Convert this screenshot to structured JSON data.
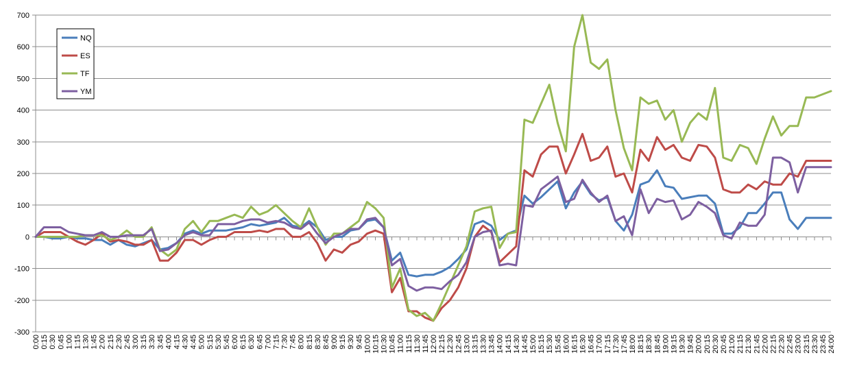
{
  "chart_data": {
    "type": "line",
    "title": "",
    "xlabel": "",
    "ylabel": "",
    "ylim": [
      -300,
      700
    ],
    "y_ticks": [
      -300,
      -200,
      -100,
      0,
      100,
      200,
      300,
      400,
      500,
      600,
      700
    ],
    "grid": "horizontal",
    "legend_position": "top-left",
    "x": [
      "0:00",
      "0:15",
      "0:30",
      "0:45",
      "1:00",
      "1:15",
      "1:30",
      "1:45",
      "2:00",
      "2:15",
      "2:30",
      "2:45",
      "3:00",
      "3:15",
      "3:30",
      "3:45",
      "4:00",
      "4:15",
      "4:30",
      "4:45",
      "5:00",
      "5:15",
      "5:30",
      "5:45",
      "6:00",
      "6:15",
      "6:30",
      "6:45",
      "7:00",
      "7:15",
      "7:30",
      "7:45",
      "8:00",
      "8:15",
      "8:30",
      "8:45",
      "9:00",
      "9:15",
      "9:30",
      "9:45",
      "10:00",
      "10:15",
      "10:30",
      "10:45",
      "11:00",
      "11:15",
      "11:30",
      "11:45",
      "12:00",
      "12:15",
      "12:30",
      "12:45",
      "13:00",
      "13:15",
      "13:30",
      "13:45",
      "14:00",
      "14:15",
      "14:30",
      "14:45",
      "15:00",
      "15:15",
      "15:30",
      "15:45",
      "16:00",
      "16:15",
      "16:30",
      "16:45",
      "17:00",
      "17:15",
      "17:30",
      "17:45",
      "18:00",
      "18:15",
      "18:30",
      "18:45",
      "19:00",
      "19:15",
      "19:30",
      "19:45",
      "20:00",
      "20:15",
      "20:30",
      "20:45",
      "21:00",
      "21:15",
      "21:30",
      "21:45",
      "22:00",
      "22:15",
      "22:30",
      "22:45",
      "23:00",
      "23:15",
      "23:30",
      "23:45",
      "24:00"
    ],
    "series": [
      {
        "name": "NQ",
        "color": "#4a7ebb",
        "values": [
          0,
          0,
          -5,
          -5,
          0,
          -5,
          -5,
          -10,
          -10,
          -25,
          -10,
          -25,
          -30,
          -20,
          -10,
          -40,
          -35,
          -20,
          10,
          20,
          10,
          20,
          20,
          20,
          25,
          30,
          40,
          35,
          40,
          45,
          60,
          35,
          30,
          50,
          30,
          -10,
          0,
          0,
          20,
          25,
          50,
          55,
          30,
          -75,
          -50,
          -120,
          -125,
          -120,
          -120,
          -110,
          -95,
          -70,
          -40,
          40,
          50,
          35,
          -10,
          10,
          20,
          130,
          105,
          125,
          150,
          175,
          90,
          140,
          175,
          135,
          115,
          125,
          50,
          20,
          70,
          165,
          175,
          210,
          160,
          155,
          120,
          125,
          130,
          130,
          105,
          10,
          10,
          30,
          75,
          75,
          105,
          140,
          140,
          55,
          25,
          60,
          60,
          60,
          60
        ]
      },
      {
        "name": "ES",
        "color": "#be4b48",
        "values": [
          0,
          15,
          15,
          15,
          0,
          -15,
          -25,
          -10,
          10,
          -15,
          -10,
          -15,
          -25,
          -25,
          -10,
          -75,
          -75,
          -50,
          -10,
          -10,
          -25,
          -10,
          0,
          0,
          15,
          15,
          15,
          20,
          15,
          25,
          25,
          0,
          0,
          15,
          -20,
          -75,
          -40,
          -50,
          -25,
          -15,
          10,
          20,
          10,
          -175,
          -130,
          -235,
          -235,
          -255,
          -265,
          -225,
          -200,
          -160,
          -100,
          0,
          35,
          15,
          -80,
          -55,
          -30,
          210,
          190,
          260,
          285,
          285,
          200,
          260,
          325,
          240,
          250,
          285,
          190,
          200,
          140,
          275,
          240,
          315,
          275,
          290,
          250,
          240,
          290,
          285,
          250,
          150,
          140,
          140,
          165,
          150,
          175,
          165,
          165,
          200,
          190,
          240,
          240,
          240,
          240
        ]
      },
      {
        "name": "TF",
        "color": "#98b954",
        "values": [
          0,
          0,
          0,
          0,
          0,
          0,
          5,
          5,
          5,
          -10,
          0,
          20,
          0,
          0,
          30,
          -40,
          -60,
          -40,
          25,
          50,
          15,
          50,
          50,
          60,
          70,
          60,
          95,
          70,
          80,
          100,
          75,
          50,
          30,
          90,
          30,
          -25,
          10,
          10,
          30,
          50,
          110,
          90,
          60,
          -160,
          -100,
          -230,
          -250,
          -240,
          -265,
          -210,
          -150,
          -90,
          -30,
          80,
          90,
          95,
          -35,
          10,
          15,
          370,
          360,
          420,
          480,
          360,
          270,
          600,
          700,
          550,
          530,
          560,
          400,
          280,
          210,
          440,
          420,
          430,
          370,
          400,
          300,
          360,
          390,
          370,
          470,
          250,
          240,
          290,
          280,
          230,
          310,
          380,
          320,
          350,
          350,
          440,
          440,
          450,
          460
        ]
      },
      {
        "name": "YM",
        "color": "#7d5fa0",
        "values": [
          0,
          30,
          30,
          30,
          15,
          10,
          5,
          5,
          15,
          0,
          0,
          5,
          5,
          5,
          25,
          -45,
          -40,
          -20,
          5,
          15,
          5,
          5,
          40,
          40,
          40,
          50,
          55,
          55,
          45,
          50,
          45,
          30,
          25,
          45,
          10,
          -20,
          0,
          10,
          25,
          25,
          55,
          60,
          30,
          -90,
          -70,
          -155,
          -170,
          -160,
          -160,
          -165,
          -140,
          -120,
          -80,
          0,
          15,
          20,
          -90,
          -85,
          -90,
          100,
          95,
          150,
          170,
          190,
          110,
          120,
          180,
          140,
          110,
          130,
          50,
          65,
          5,
          150,
          75,
          120,
          110,
          115,
          55,
          70,
          110,
          95,
          75,
          5,
          -5,
          45,
          35,
          35,
          70,
          250,
          250,
          235,
          140,
          220,
          220,
          220,
          220
        ]
      }
    ]
  }
}
